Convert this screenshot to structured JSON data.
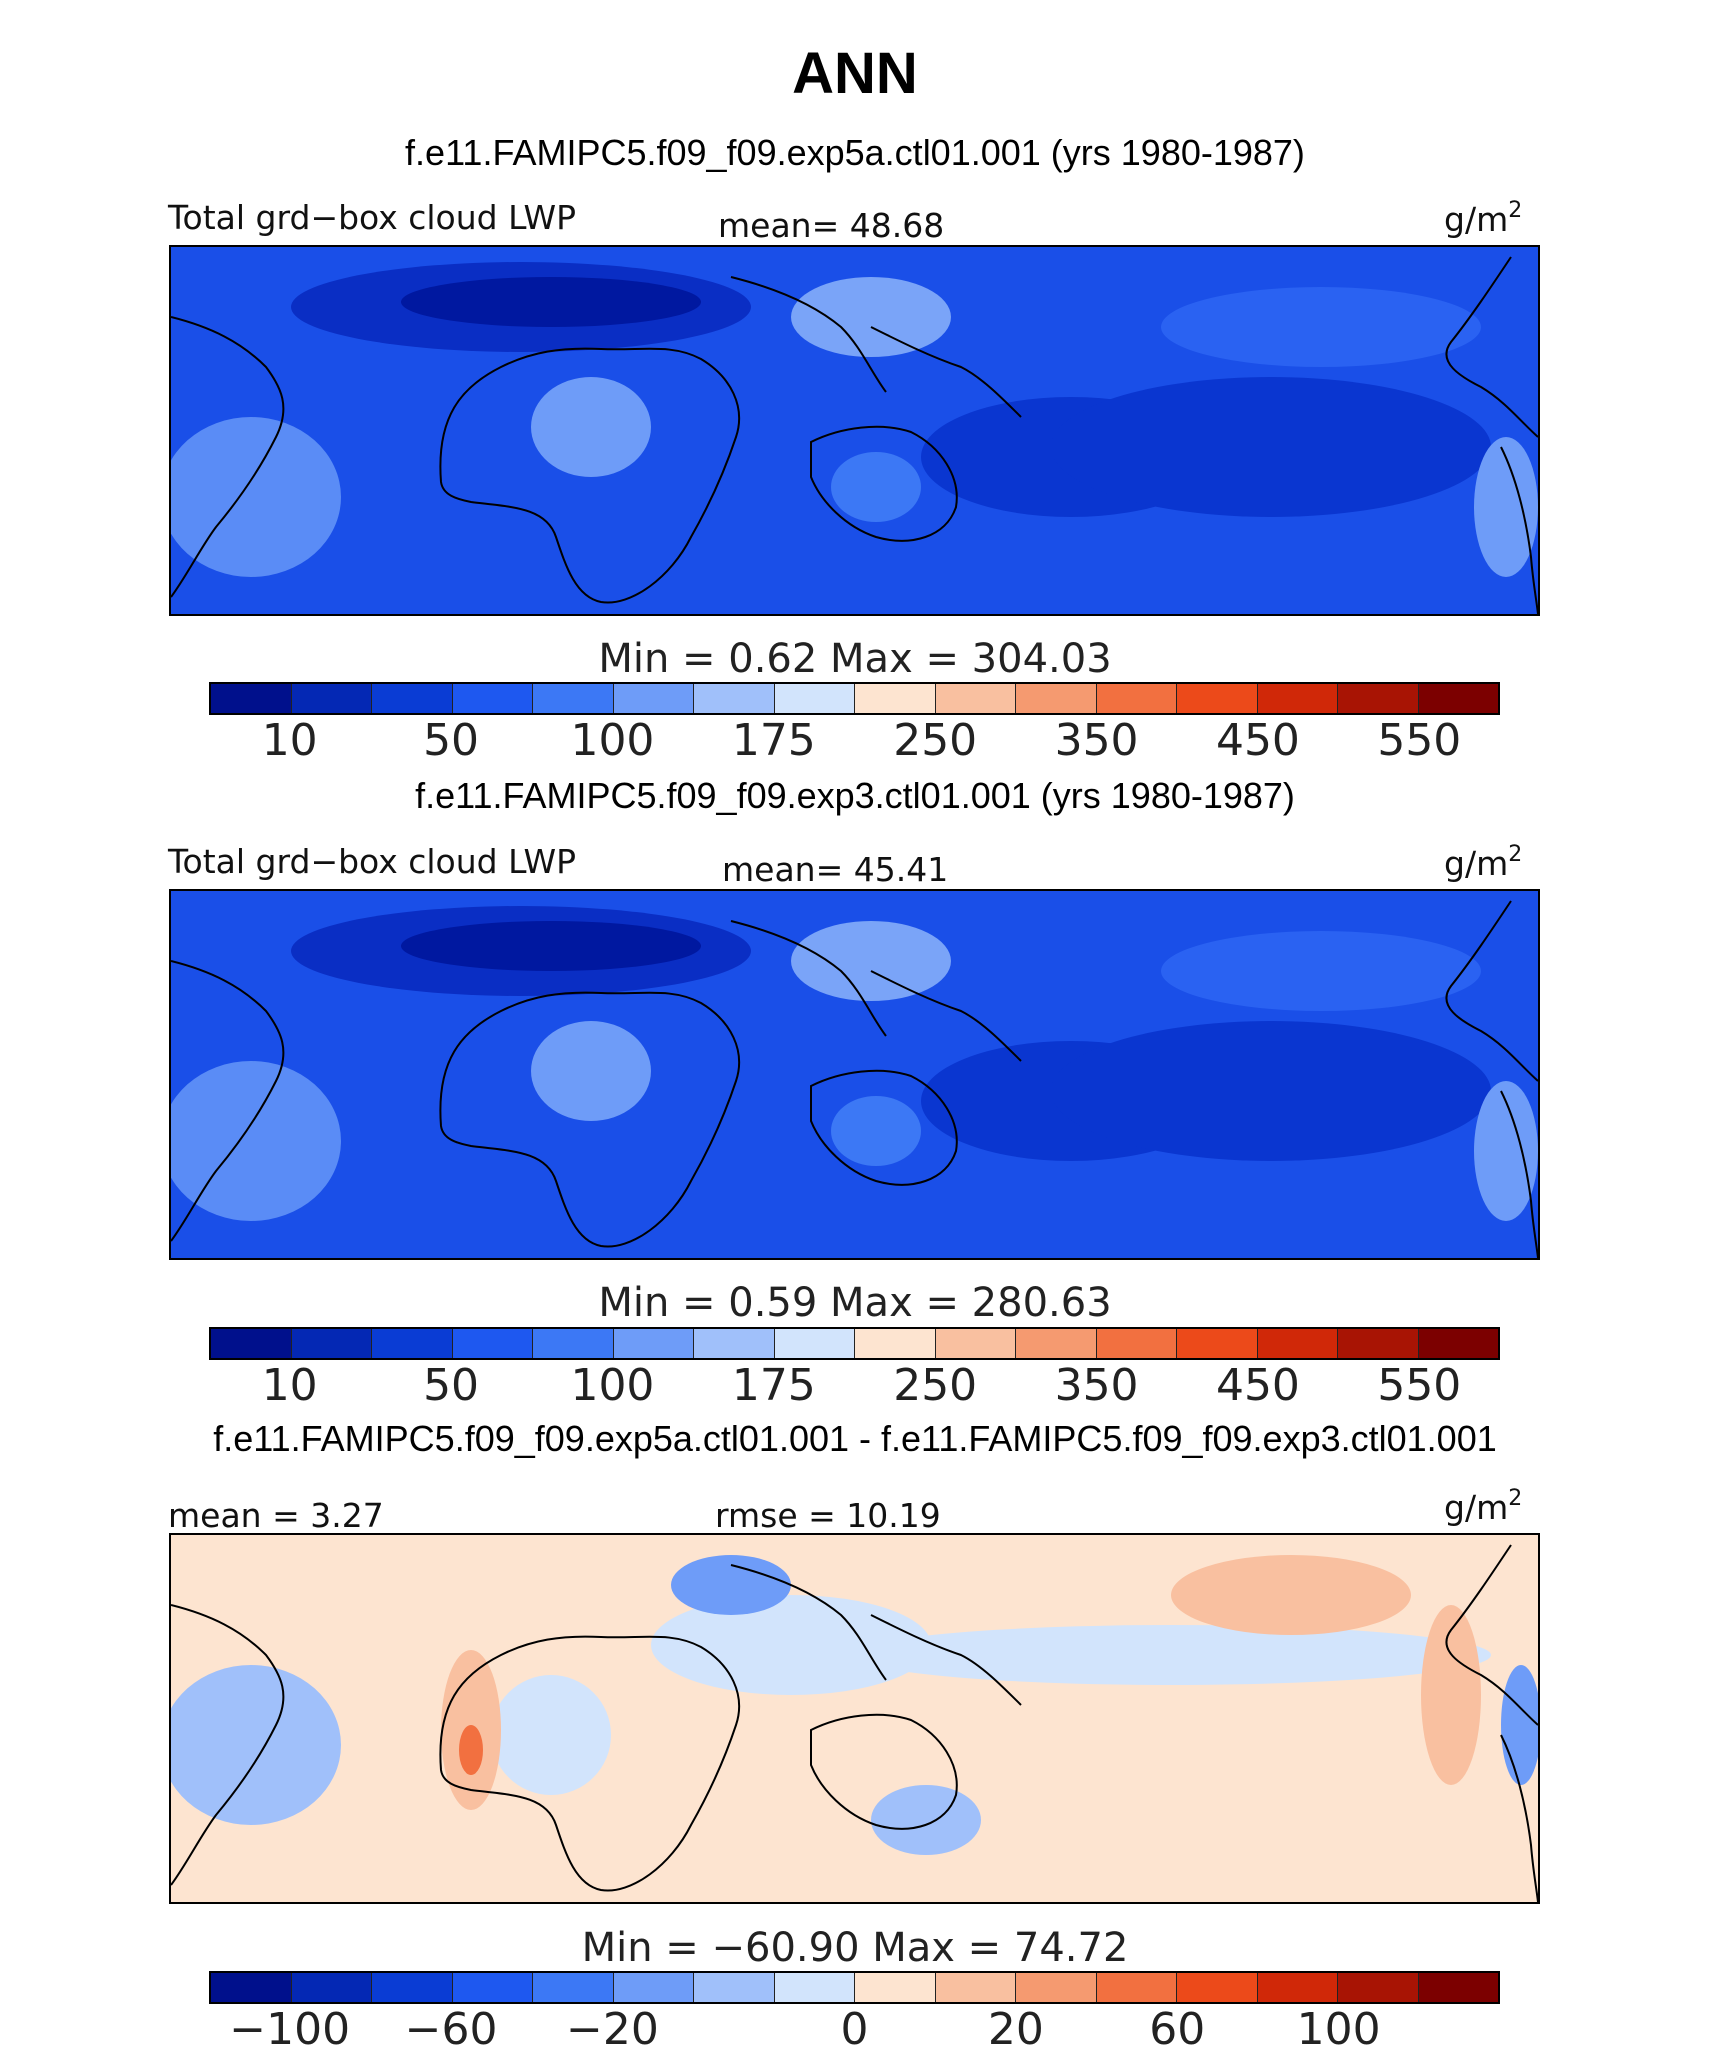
{
  "title": "ANN",
  "panels": [
    {
      "case_title": "f.e11.FAMIPC5.f09_f09.exp5a.ctl01.001 (yrs 1980-1987)",
      "left_label": "Total grd−box cloud LWP",
      "center_label": "mean=  48.68",
      "units": "g/m",
      "units_sup": "2",
      "minmax": "Min =    0.62  Max = 304.03",
      "colorbar": {
        "colors": [
          "#00108c",
          "#0428b4",
          "#0a3cd4",
          "#1e58f0",
          "#3c78f5",
          "#6e9cf8",
          "#a0c0fa",
          "#d2e4fc",
          "#fde4d0",
          "#f9c0a0",
          "#f59a70",
          "#f27040",
          "#ec4a1a",
          "#d02808",
          "#a81404",
          "#7c0000"
        ],
        "tick_labels": [
          "10",
          "50",
          "100",
          "175",
          "250",
          "350",
          "450",
          "550"
        ]
      },
      "style": "abs"
    },
    {
      "case_title": "f.e11.FAMIPC5.f09_f09.exp3.ctl01.001 (yrs 1980-1987)",
      "left_label": "Total grd−box cloud LWP",
      "center_label": "mean=  45.41",
      "units": "g/m",
      "units_sup": "2",
      "minmax": "Min =    0.59  Max = 280.63",
      "colorbar": {
        "colors": [
          "#00108c",
          "#0428b4",
          "#0a3cd4",
          "#1e58f0",
          "#3c78f5",
          "#6e9cf8",
          "#a0c0fa",
          "#d2e4fc",
          "#fde4d0",
          "#f9c0a0",
          "#f59a70",
          "#f27040",
          "#ec4a1a",
          "#d02808",
          "#a81404",
          "#7c0000"
        ],
        "tick_labels": [
          "10",
          "50",
          "100",
          "175",
          "250",
          "350",
          "450",
          "550"
        ]
      },
      "style": "abs"
    },
    {
      "case_title": "f.e11.FAMIPC5.f09_f09.exp5a.ctl01.001 - f.e11.FAMIPC5.f09_f09.exp3.ctl01.001",
      "left_label": "mean =   3.27",
      "center_label": "rmse =  10.19",
      "units": "g/m",
      "units_sup": "2",
      "minmax": "Min = −60.90  Max =  74.72",
      "colorbar": {
        "colors": [
          "#00108c",
          "#0428b4",
          "#0a3cd4",
          "#1e58f0",
          "#3c78f5",
          "#6e9cf8",
          "#a0c0fa",
          "#d2e4fc",
          "#fde4d0",
          "#f9c0a0",
          "#f59a70",
          "#f27040",
          "#ec4a1a",
          "#d02808",
          "#a81404",
          "#7c0000"
        ],
        "tick_labels": [
          "−100",
          "−60",
          "−20",
          "0",
          "20",
          "60",
          "100"
        ]
      },
      "style": "diff"
    }
  ]
}
